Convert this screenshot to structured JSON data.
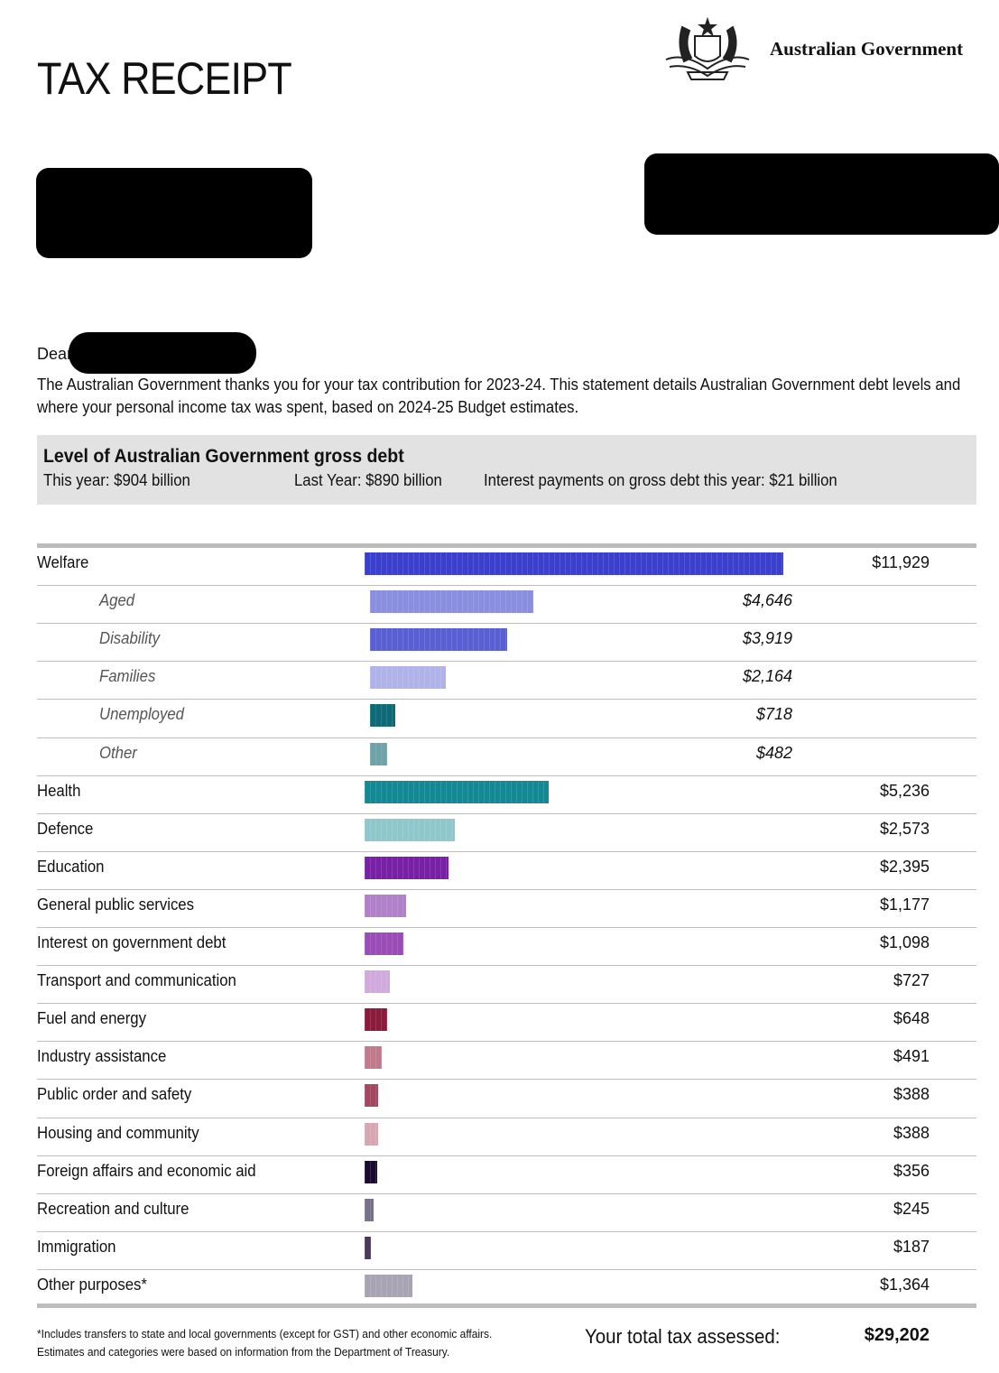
{
  "header": {
    "title": "TAX RECEIPT",
    "logo_text": "Australian Government"
  },
  "letter": {
    "greeting": "Dear",
    "body": "The Australian Government thanks you for your tax contribution for 2023-24. This statement details Australian Government debt levels and where your personal income tax was spent, based on 2024-25 Budget estimates."
  },
  "debt": {
    "title": "Level of Australian Government gross debt",
    "this_year": "This year: $904 billion",
    "last_year": "Last Year: $890 billion",
    "interest": "Interest payments on gross debt this year: $21 billion"
  },
  "spending": {
    "rows": [
      {
        "label": "Welfare",
        "amount": 11929,
        "amount_label": "$11,929",
        "color": "#3b3fcf",
        "sub": false
      },
      {
        "label": "Aged",
        "amount": 4646,
        "amount_label": "$4,646",
        "color": "#8a8ee0",
        "sub": true
      },
      {
        "label": "Disability",
        "amount": 3919,
        "amount_label": "$3,919",
        "color": "#5a5fd6",
        "sub": true
      },
      {
        "label": "Families",
        "amount": 2164,
        "amount_label": "$2,164",
        "color": "#b0b3ea",
        "sub": true
      },
      {
        "label": "Unemployed",
        "amount": 718,
        "amount_label": "$718",
        "color": "#0e6a78",
        "sub": true
      },
      {
        "label": "Other",
        "amount": 482,
        "amount_label": "$482",
        "color": "#6fa3aa",
        "sub": true
      },
      {
        "label": "Health",
        "amount": 5236,
        "amount_label": "$5,236",
        "color": "#128a95",
        "sub": false
      },
      {
        "label": "Defence",
        "amount": 2573,
        "amount_label": "$2,573",
        "color": "#8ec7cc",
        "sub": false
      },
      {
        "label": "Education",
        "amount": 2395,
        "amount_label": "$2,395",
        "color": "#7a1fa8",
        "sub": false
      },
      {
        "label": "General public services",
        "amount": 1177,
        "amount_label": "$1,177",
        "color": "#b27fcb",
        "sub": false
      },
      {
        "label": "Interest on government debt",
        "amount": 1098,
        "amount_label": "$1,098",
        "color": "#9b4cb8",
        "sub": false
      },
      {
        "label": "Transport and communication",
        "amount": 727,
        "amount_label": "$727",
        "color": "#d2a9dd",
        "sub": false
      },
      {
        "label": "Fuel and energy",
        "amount": 648,
        "amount_label": "$648",
        "color": "#8c1a3c",
        "sub": false
      },
      {
        "label": "Industry assistance",
        "amount": 491,
        "amount_label": "$491",
        "color": "#c07a8c",
        "sub": false
      },
      {
        "label": "Public order and safety",
        "amount": 388,
        "amount_label": "$388",
        "color": "#a4475f",
        "sub": false
      },
      {
        "label": "Housing and community",
        "amount": 388,
        "amount_label": "$388",
        "color": "#d8a6b3",
        "sub": false
      },
      {
        "label": "Foreign affairs and economic aid",
        "amount": 356,
        "amount_label": "$356",
        "color": "#1a0a30",
        "sub": false
      },
      {
        "label": "Recreation and culture",
        "amount": 245,
        "amount_label": "$245",
        "color": "#77728a",
        "sub": false
      },
      {
        "label": "Immigration",
        "amount": 187,
        "amount_label": "$187",
        "color": "#4a3a5a",
        "sub": false
      },
      {
        "label": "Other purposes*",
        "amount": 1364,
        "amount_label": "$1,364",
        "color": "#a9a4b4",
        "sub": false
      }
    ]
  },
  "footer": {
    "footnote": [
      "*Includes transfers to state and local governments (except for GST) and other economic affairs.",
      "Estimates and categories were based on information from the Department of Treasury."
    ],
    "total_label": "Your total tax assessed:",
    "total": "$29,202"
  }
}
